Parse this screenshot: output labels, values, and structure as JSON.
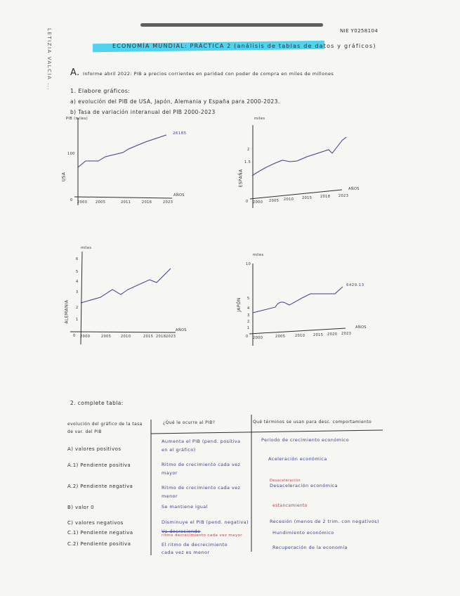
{
  "header": {
    "student_id": "NIE Y0258104",
    "side_name": "LETIZIA VALCIA ...",
    "title": "ECONOMÍA MUNDIAL: PRÁCTICA 2 (análisis de tablas de datos y gráficos)"
  },
  "section_a": {
    "heading": "A.",
    "intro": "Informe abril 2022: PIB a precios corrientes en paridad con poder de compra en miles de millones",
    "task1": "1. Elabore gráficos:",
    "task1a": "a) evolución del PIB de USA, Japón, Alemania y España para 2000-2023.",
    "task1b": "b) Tasa de variación interanual del PIB 2000-2023"
  },
  "charts": [
    {
      "country_label": "USA",
      "unit_label": "PIB (miles)",
      "y_tick": "100",
      "x_ticks": [
        "2000",
        "2005",
        "2011",
        "2016",
        "2023"
      ],
      "x_axis_label": "AÑOS",
      "end_value": "26185",
      "origin": "0"
    },
    {
      "country_label": "ESPAÑA",
      "unit_label": "miles",
      "y_ticks": [
        "1.5",
        "2"
      ],
      "x_ticks": [
        "2000",
        "2005",
        "2010",
        "2015",
        "2018",
        "2023"
      ],
      "x_axis_label": "AÑOS",
      "origin": "0"
    },
    {
      "country_label": "ALEMANIA",
      "unit_label": "miles",
      "y_ticks": [
        "6",
        "5",
        "4",
        "3",
        "2",
        "1"
      ],
      "x_ticks": [
        "2000",
        "2005",
        "2010",
        "2015",
        "2018",
        "2023"
      ],
      "x_axis_label": "AÑOS",
      "origin": "0"
    },
    {
      "country_label": "JAPÓN",
      "unit_label": "miles",
      "y_ticks": [
        "10",
        "5",
        "4",
        "3",
        "2",
        "1"
      ],
      "x_ticks": [
        "2000",
        "2005",
        "2010",
        "2015",
        "2020",
        "2023"
      ],
      "x_axis_label": "AÑOS",
      "end_value": "6429.13",
      "origin": "0"
    }
  ],
  "section_2": {
    "heading": "2. complete tabla:",
    "col1_header": "evolución del gráfico de la tasa de var. del PIB",
    "col2_header": "¿Qué le ocurre al PIB?",
    "col3_header": "Qué términos se usan para desc. comportamiento",
    "rows": [
      {
        "label": "A) valores positivos",
        "what": "Aumenta el PIB (pend. positiva en el gráfico)",
        "term": "Periodo de crecimiento económico"
      },
      {
        "label": "A.1) Pendiente positiva",
        "what": "Ritmo de crecimiento cada vez mayor",
        "term": "Aceleración económica"
      },
      {
        "label": "A.2) Pendiente negativa",
        "what": "Ritmo de crecimiento cada vez menor",
        "term": "Desaceleración económica",
        "term_correction": "Desaceleración"
      },
      {
        "label": "B) valor 0",
        "what": "Se mantiene igual",
        "term": "estancamiento"
      },
      {
        "label": "C) valores negativos",
        "what": "Disminuye el PIB (pend. negativa)",
        "term": "Recesión (menos de 2 trim. con negativos)"
      },
      {
        "label": "C.1) Pendiente negativa",
        "what": "Va decreciendo",
        "what_correction": "ritmo decrecimiento cada vez mayor",
        "term": "Hundimiento económico"
      },
      {
        "label": "C.2) Pendiente positiva",
        "what": "El ritmo de decrecimiento cada vez es menor",
        "term": "Recuperación de la economía"
      }
    ]
  },
  "colors": {
    "ink": "#2e2e33",
    "blue_ink": "#3b3f8f",
    "red_ink": "#c23b3b",
    "highlight": "#4fd3ef"
  }
}
